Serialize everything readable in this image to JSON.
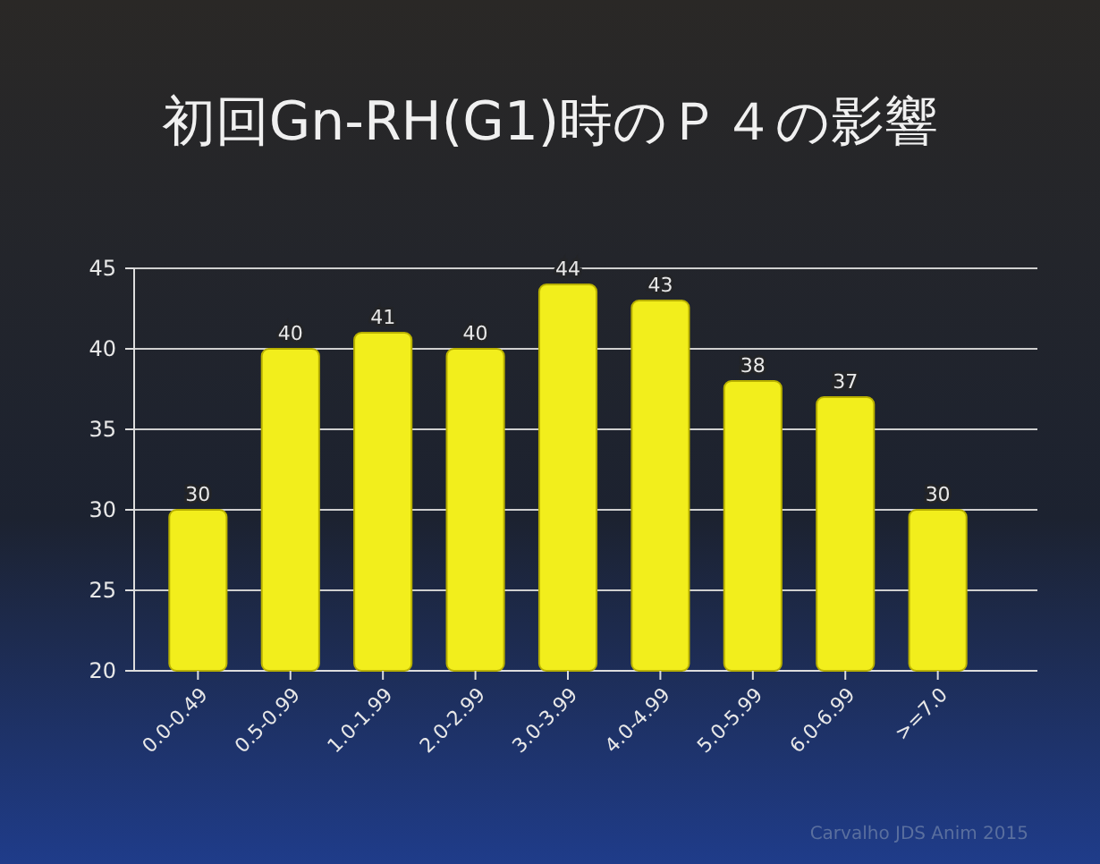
{
  "chart_data": {
    "type": "bar",
    "title": "初回Gn-RH(G1)時のＰ４の影響",
    "categories": [
      "0.0-0.49",
      "0.5-0.99",
      "1.0-1.99",
      "2.0-2.99",
      "3.0-3.99",
      "4.0-4.99",
      "5.0-5.99",
      "6.0-6.99",
      ">=7.0"
    ],
    "values": [
      30,
      40,
      41,
      40,
      44,
      43,
      38,
      37,
      30
    ],
    "color": "#f2ee1c",
    "ylim": [
      20,
      45
    ],
    "yticks": [
      20,
      25,
      30,
      35,
      40,
      45
    ],
    "grid": "y",
    "data_labels": true,
    "annotations": [
      "Carvalho JDS Anim 2015"
    ]
  }
}
